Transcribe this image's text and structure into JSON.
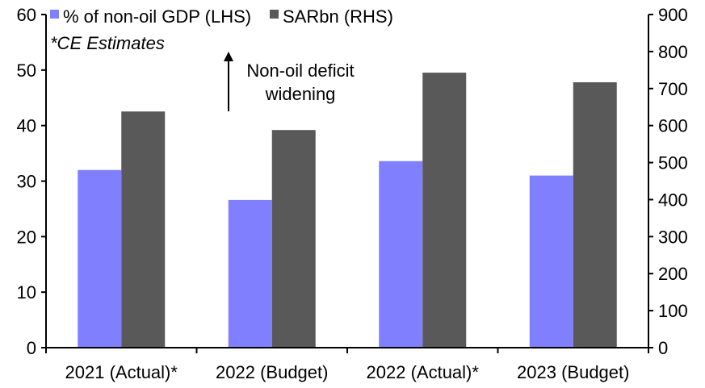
{
  "chart_data": {
    "type": "bar",
    "categories": [
      "2021 (Actual)*",
      "2022 (Budget)",
      "2022 (Actual)*",
      "2023 (Budget)"
    ],
    "series": [
      {
        "name": "% of non-oil GDP (LHS)",
        "axis": "left",
        "color": "#8080ff",
        "values": [
          32.0,
          26.6,
          33.6,
          31.0
        ]
      },
      {
        "name": "SARbn (RHS)",
        "axis": "right",
        "color": "#595959",
        "values": [
          638,
          588,
          743,
          717
        ]
      }
    ],
    "ylim_left": [
      0,
      60
    ],
    "ylim_right": [
      0,
      900
    ],
    "yticks_left": [
      "0",
      "10",
      "20",
      "30",
      "40",
      "50",
      "60"
    ],
    "yticks_right": [
      "0",
      "100",
      "200",
      "300",
      "400",
      "500",
      "600",
      "700",
      "800",
      "900"
    ],
    "annotations": {
      "note": "*CE Estimates",
      "arrow_label_line1": "Non-oil deficit",
      "arrow_label_line2": "widening"
    },
    "legend_position": "top-left",
    "grid": false
  }
}
